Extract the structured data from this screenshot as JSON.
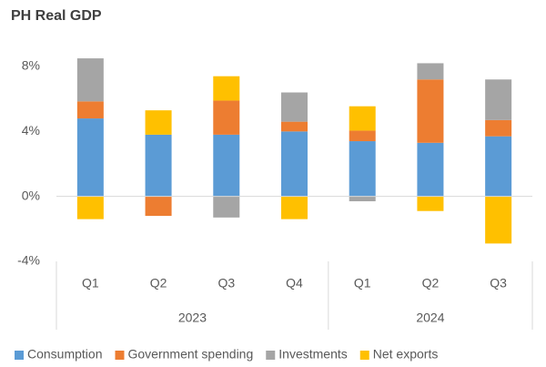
{
  "chart_data": {
    "type": "stacked_bar",
    "title": "PH Real GDP",
    "groups": [
      {
        "label": "2023",
        "categories": [
          "Q1",
          "Q2",
          "Q3",
          "Q4"
        ]
      },
      {
        "label": "2024",
        "categories": [
          "Q1",
          "Q2",
          "Q3"
        ]
      }
    ],
    "series": [
      {
        "name": "Consumption",
        "color": "#5b9bd5",
        "values": [
          4.8,
          3.8,
          3.8,
          4.0,
          3.4,
          3.3,
          3.7
        ]
      },
      {
        "name": "Government spending",
        "color": "#ed7d31",
        "values": [
          1.05,
          -1.2,
          2.1,
          0.6,
          0.65,
          3.9,
          1.0
        ]
      },
      {
        "name": "Investments",
        "color": "#a5a5a5",
        "values": [
          2.65,
          0,
          -1.3,
          1.8,
          -0.3,
          1.0,
          2.5
        ]
      },
      {
        "name": "Net exports",
        "color": "#ffc000",
        "values": [
          -1.4,
          1.5,
          1.5,
          -1.4,
          1.5,
          -0.9,
          -2.9
        ]
      }
    ],
    "ylim": [
      -4,
      8
    ],
    "yticks": [
      {
        "value": -4,
        "label": "-4%"
      },
      {
        "value": 0,
        "label": "0%"
      },
      {
        "value": 4,
        "label": "4%"
      },
      {
        "value": 8,
        "label": "8%"
      }
    ],
    "legend": "bottom"
  }
}
